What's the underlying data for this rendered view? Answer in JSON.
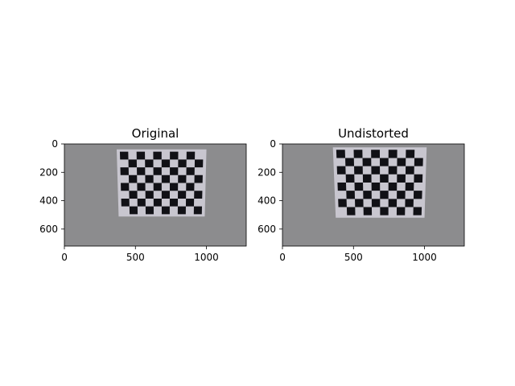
{
  "chart_data": [
    {
      "type": "image",
      "title": "Original",
      "xlim": [
        0,
        1280
      ],
      "ylim": [
        720,
        0
      ],
      "xticks": [
        0,
        500,
        1000
      ],
      "yticks": [
        0,
        200,
        400,
        600
      ],
      "colors": {
        "background": "#8c8c8e",
        "board": "#c8c6cf",
        "square": "#111116"
      },
      "board": {
        "corners": [
          [
            368,
            38
          ],
          [
            1000,
            38
          ],
          [
            988,
            512
          ],
          [
            382,
            512
          ]
        ],
        "rows": 8,
        "cols": 10
      }
    },
    {
      "type": "image",
      "title": "Undistorted",
      "xlim": [
        0,
        1280
      ],
      "ylim": [
        720,
        0
      ],
      "xticks": [
        0,
        500,
        1000
      ],
      "yticks": [
        0,
        200,
        400,
        600
      ],
      "colors": {
        "background": "#8c8c8e",
        "board": "#c8c6cf",
        "square": "#111116"
      },
      "board": {
        "corners": [
          [
            355,
            24
          ],
          [
            1015,
            24
          ],
          [
            1000,
            520
          ],
          [
            375,
            520
          ]
        ],
        "rows": 8,
        "cols": 10
      }
    }
  ]
}
